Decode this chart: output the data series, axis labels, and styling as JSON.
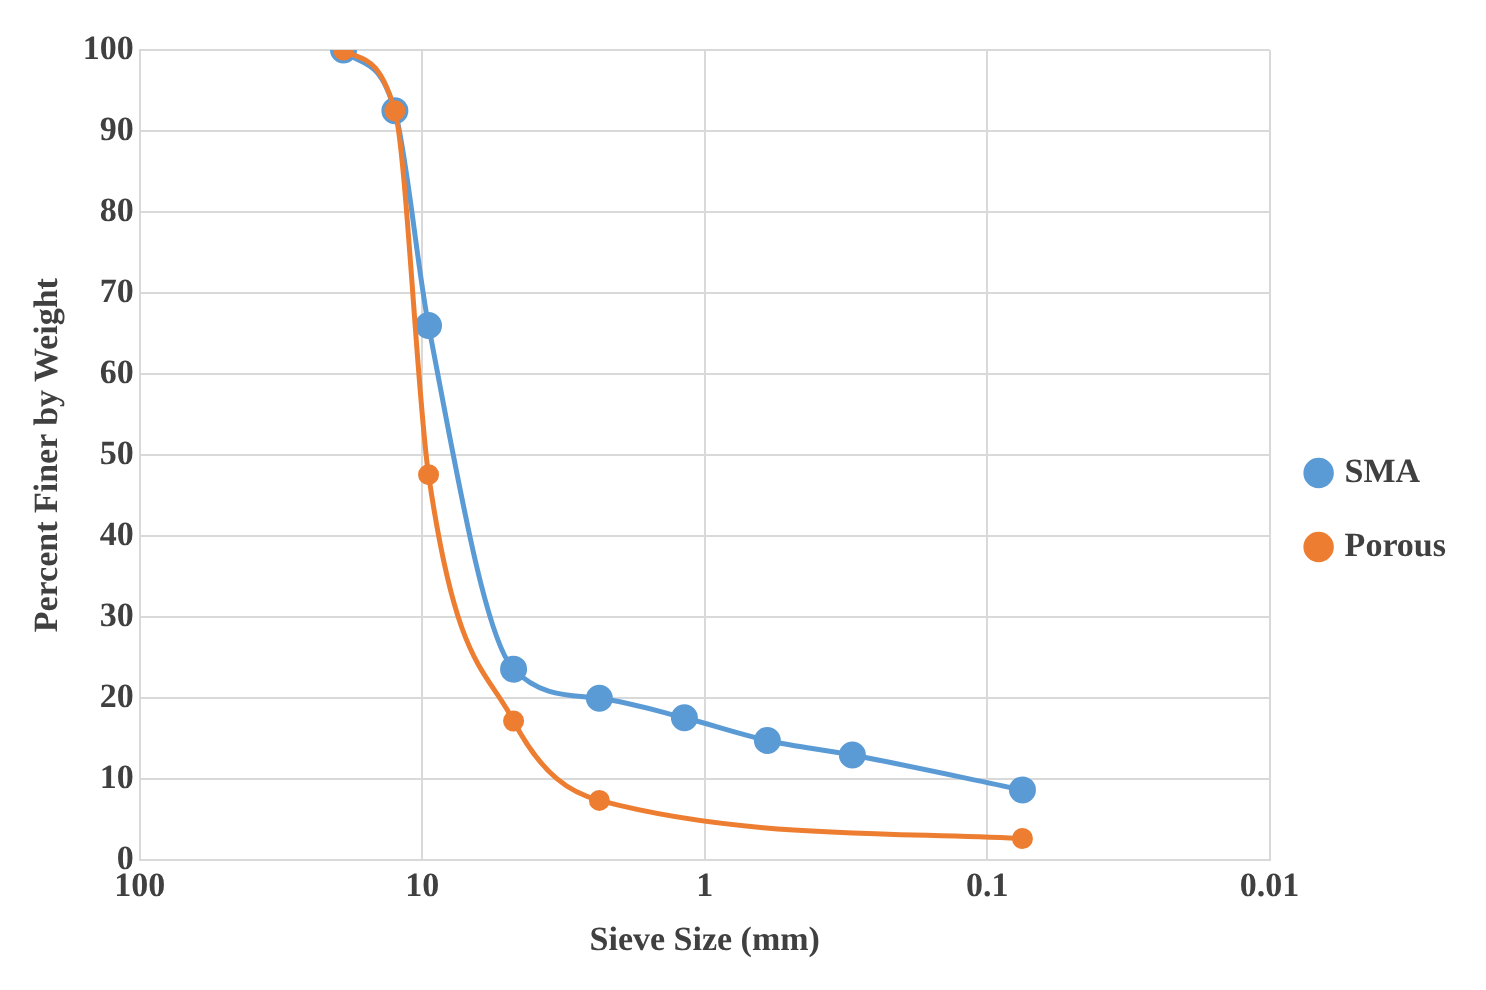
{
  "chart_data": {
    "type": "line",
    "xlabel": "Sieve Size (mm)",
    "ylabel": "Percent Finer by Weight",
    "log": "x",
    "xlim": [
      100,
      0.01
    ],
    "xticks": [
      100,
      10,
      1,
      0.1,
      0.01
    ],
    "ylim": [
      0,
      100
    ],
    "yticks": [
      0,
      10,
      20,
      30,
      40,
      50,
      60,
      70,
      80,
      90,
      100
    ],
    "grid": true,
    "legend": "right",
    "marker": "circle",
    "line_style": "solid",
    "series": [
      {
        "name": "SMA",
        "color": "#5b9bd5",
        "x": [
          19,
          12.5,
          9.5,
          4.75,
          2.36,
          1.18,
          0.6,
          0.3,
          0.075
        ],
        "values": [
          100,
          92.5,
          66,
          23.6,
          20,
          17.6,
          14.8,
          13,
          8.7
        ]
      },
      {
        "name": "Porous",
        "color": "#ed7d31",
        "x": [
          19,
          12.5,
          9.5,
          4.75,
          2.36,
          0.075
        ],
        "values": [
          100,
          92.5,
          47.6,
          17.2,
          7.4,
          2.7
        ]
      }
    ]
  }
}
